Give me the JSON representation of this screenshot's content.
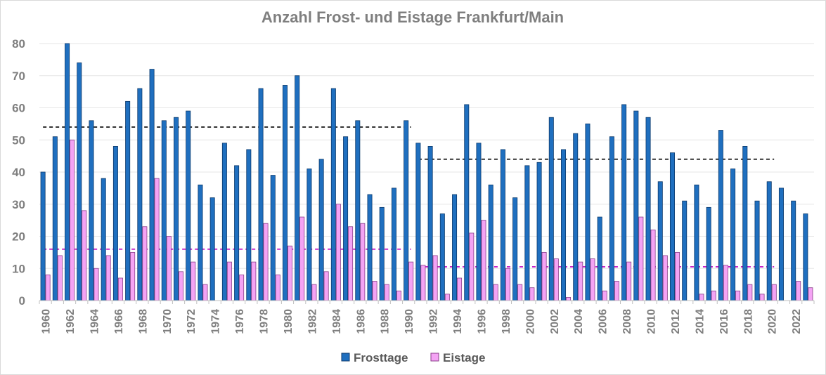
{
  "chart_data": {
    "type": "bar",
    "title": "Anzahl Frost- und Eistage Frankfurt/Main",
    "x": [
      1960,
      1961,
      1962,
      1963,
      1964,
      1965,
      1966,
      1967,
      1968,
      1969,
      1970,
      1971,
      1972,
      1973,
      1974,
      1975,
      1976,
      1977,
      1978,
      1979,
      1980,
      1981,
      1982,
      1983,
      1984,
      1985,
      1986,
      1987,
      1988,
      1989,
      1990,
      1991,
      1992,
      1993,
      1994,
      1995,
      1996,
      1997,
      1998,
      1999,
      2000,
      2001,
      2002,
      2003,
      2004,
      2005,
      2006,
      2007,
      2008,
      2009,
      2010,
      2011,
      2012,
      2013,
      2014,
      2015,
      2016,
      2017,
      2018,
      2019,
      2020,
      2021,
      2022,
      2023
    ],
    "x_tick_labels": [
      "1960",
      "1962",
      "1964",
      "1966",
      "1968",
      "1970",
      "1972",
      "1974",
      "1976",
      "1978",
      "1980",
      "1982",
      "1984",
      "1986",
      "1988",
      "1990",
      "1992",
      "1994",
      "1996",
      "1998",
      "2000",
      "2002",
      "2004",
      "2006",
      "2008",
      "2010",
      "2012",
      "2014",
      "2016",
      "2018",
      "2020",
      "2022"
    ],
    "series": [
      {
        "name": "Frosttage",
        "color": "#1f6fbf",
        "values": [
          40,
          51,
          80,
          74,
          56,
          38,
          48,
          62,
          66,
          72,
          56,
          57,
          59,
          36,
          32,
          49,
          42,
          47,
          66,
          39,
          67,
          70,
          41,
          44,
          66,
          51,
          56,
          33,
          29,
          35,
          56,
          49,
          48,
          27,
          33,
          61,
          49,
          36,
          47,
          32,
          42,
          43,
          57,
          47,
          52,
          55,
          26,
          51,
          61,
          59,
          57,
          37,
          46,
          31,
          36,
          29,
          53,
          41,
          48,
          31,
          37,
          35,
          31,
          27
        ]
      },
      {
        "name": "Eistage",
        "color": "#f4a3f4",
        "values": [
          8,
          14,
          50,
          28,
          10,
          14,
          7,
          15,
          23,
          38,
          20,
          9,
          12,
          5,
          0,
          12,
          8,
          12,
          24,
          8,
          17,
          26,
          5,
          9,
          30,
          23,
          24,
          6,
          5,
          3,
          12,
          11,
          14,
          2,
          7,
          21,
          25,
          5,
          10,
          5,
          4,
          15,
          13,
          1,
          12,
          13,
          3,
          6,
          12,
          26,
          22,
          14,
          15,
          0,
          2,
          3,
          11,
          3,
          5,
          2,
          5,
          0,
          6,
          4
        ]
      }
    ],
    "reference_lines": [
      {
        "series": "Frosttage",
        "from": 1960,
        "to": 1990,
        "value": 54,
        "color": "#000000"
      },
      {
        "series": "Frosttage",
        "from": 1991,
        "to": 2020,
        "value": 44,
        "color": "#000000"
      },
      {
        "series": "Eistage",
        "from": 1960,
        "to": 1990,
        "value": 16,
        "color": "#c000c0"
      },
      {
        "series": "Eistage",
        "from": 1991,
        "to": 2020,
        "value": 10.5,
        "color": "#c000c0"
      }
    ],
    "y_ticks": [
      "0",
      "10",
      "20",
      "30",
      "40",
      "50",
      "60",
      "70",
      "80"
    ],
    "ylim": [
      0,
      80
    ],
    "grid": true,
    "legend": "bottom"
  }
}
